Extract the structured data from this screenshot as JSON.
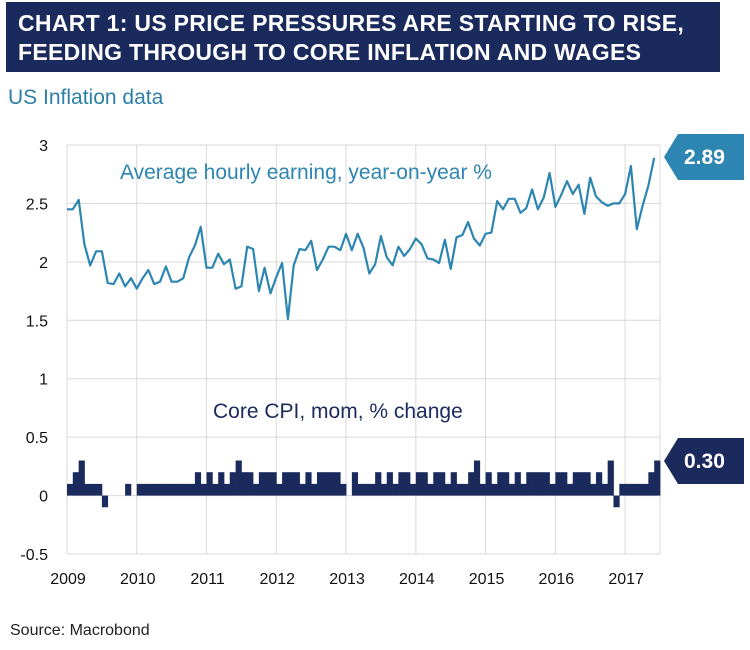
{
  "header": {
    "title_line1": "CHART 1: US PRICE PRESSURES ARE STARTING TO RISE,",
    "title_line2": "FEEDING THROUGH TO CORE INFLATION AND WAGES"
  },
  "subtitle": "US Inflation data",
  "source": "Source: Macrobond",
  "colors": {
    "earnings": "#2d86b1",
    "cpi": "#1b2a5c",
    "title_bg": "#1b2a5c",
    "grid": "#d9d9d9"
  },
  "chart_data": {
    "type": "line",
    "title": "US Inflation data",
    "xlim": [
      2009,
      2017.5
    ],
    "ylim": [
      -0.5,
      3
    ],
    "x_ticks": [
      "2009",
      "2010",
      "2011",
      "2012",
      "2013",
      "2014",
      "2015",
      "2016",
      "2017"
    ],
    "y_ticks": [
      "3",
      "2.5",
      "2",
      "1.5",
      "1",
      "0.5",
      "0",
      "-0.5"
    ],
    "grid": true,
    "x": [
      2009.0,
      2009.083,
      2009.167,
      2009.25,
      2009.333,
      2009.417,
      2009.5,
      2009.583,
      2009.667,
      2009.75,
      2009.833,
      2009.917,
      2010.0,
      2010.083,
      2010.167,
      2010.25,
      2010.333,
      2010.417,
      2010.5,
      2010.583,
      2010.667,
      2010.75,
      2010.833,
      2010.917,
      2011.0,
      2011.083,
      2011.167,
      2011.25,
      2011.333,
      2011.417,
      2011.5,
      2011.583,
      2011.667,
      2011.75,
      2011.833,
      2011.917,
      2012.0,
      2012.083,
      2012.167,
      2012.25,
      2012.333,
      2012.417,
      2012.5,
      2012.583,
      2012.667,
      2012.75,
      2012.833,
      2012.917,
      2013.0,
      2013.083,
      2013.167,
      2013.25,
      2013.333,
      2013.417,
      2013.5,
      2013.583,
      2013.667,
      2013.75,
      2013.833,
      2013.917,
      2014.0,
      2014.083,
      2014.167,
      2014.25,
      2014.333,
      2014.417,
      2014.5,
      2014.583,
      2014.667,
      2014.75,
      2014.833,
      2014.917,
      2015.0,
      2015.083,
      2015.167,
      2015.25,
      2015.333,
      2015.417,
      2015.5,
      2015.583,
      2015.667,
      2015.75,
      2015.833,
      2015.917,
      2016.0,
      2016.083,
      2016.167,
      2016.25,
      2016.333,
      2016.417,
      2016.5,
      2016.583,
      2016.667,
      2016.75,
      2016.833,
      2016.917,
      2017.0,
      2017.083,
      2017.167,
      2017.25,
      2017.333,
      2017.417
    ],
    "series": [
      {
        "name": "Average hourly earning, year-on-year %",
        "chart": "line",
        "values": [
          2.45,
          2.45,
          2.53,
          2.15,
          1.97,
          2.09,
          2.09,
          1.82,
          1.81,
          1.9,
          1.79,
          1.86,
          1.77,
          1.86,
          1.93,
          1.81,
          1.83,
          1.96,
          1.83,
          1.83,
          1.86,
          2.04,
          2.14,
          2.3,
          1.95,
          1.95,
          2.07,
          1.98,
          2.02,
          1.77,
          1.79,
          2.13,
          2.11,
          1.75,
          1.95,
          1.73,
          1.87,
          1.99,
          1.51,
          1.97,
          2.11,
          2.1,
          2.18,
          1.93,
          2.02,
          2.13,
          2.13,
          2.1,
          2.24,
          2.1,
          2.24,
          2.12,
          1.9,
          1.98,
          2.22,
          2.04,
          1.97,
          2.13,
          2.05,
          2.11,
          2.2,
          2.15,
          2.03,
          2.02,
          1.99,
          2.19,
          1.94,
          2.21,
          2.23,
          2.34,
          2.2,
          2.14,
          2.24,
          2.25,
          2.52,
          2.45,
          2.54,
          2.54,
          2.42,
          2.46,
          2.62,
          2.45,
          2.55,
          2.76,
          2.47,
          2.57,
          2.69,
          2.58,
          2.66,
          2.41,
          2.72,
          2.56,
          2.51,
          2.48,
          2.5,
          2.5,
          2.58,
          2.82,
          2.28,
          2.48,
          2.65,
          2.89
        ]
      },
      {
        "name": "Core CPI, mom, % change",
        "chart": "bar",
        "values": [
          0.1,
          0.2,
          0.3,
          0.1,
          0.1,
          0.1,
          -0.1,
          0.0,
          0.0,
          0.0,
          0.1,
          0.0,
          0.1,
          0.1,
          0.1,
          0.1,
          0.1,
          0.1,
          0.1,
          0.1,
          0.1,
          0.1,
          0.2,
          0.1,
          0.2,
          0.1,
          0.2,
          0.1,
          0.2,
          0.3,
          0.2,
          0.2,
          0.1,
          0.2,
          0.2,
          0.2,
          0.1,
          0.2,
          0.2,
          0.2,
          0.1,
          0.2,
          0.1,
          0.2,
          0.2,
          0.2,
          0.2,
          0.1,
          0.0,
          0.2,
          0.1,
          0.1,
          0.1,
          0.2,
          0.1,
          0.2,
          0.1,
          0.2,
          0.2,
          0.1,
          0.2,
          0.2,
          0.1,
          0.2,
          0.2,
          0.1,
          0.2,
          0.1,
          0.1,
          0.2,
          0.3,
          0.1,
          0.2,
          0.1,
          0.2,
          0.2,
          0.1,
          0.2,
          0.1,
          0.2,
          0.2,
          0.2,
          0.2,
          0.1,
          0.2,
          0.2,
          0.1,
          0.2,
          0.2,
          0.2,
          0.1,
          0.2,
          0.1,
          0.3,
          -0.1,
          0.1,
          0.1,
          0.1,
          0.1,
          0.1,
          0.2,
          0.3
        ]
      }
    ],
    "annotations": {
      "earnings_label": "Average hourly earning, year-on-year %",
      "cpi_label": "Core CPI, mom, % change",
      "earnings_last": "2.89",
      "cpi_last": "0.30"
    }
  }
}
